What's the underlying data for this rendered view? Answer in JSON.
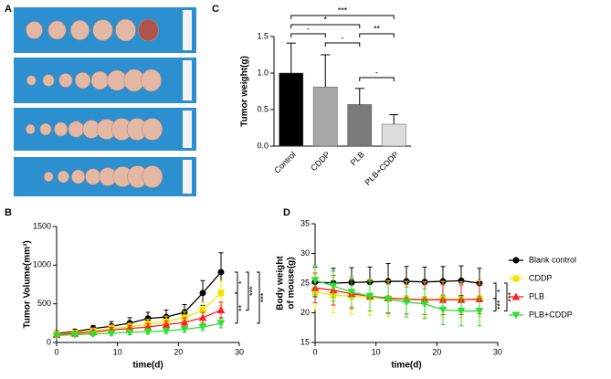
{
  "photo_panel": {
    "panel": "A"
  },
  "chart_data": [
    {
      "type": "bar",
      "panel": "C",
      "ylabel": "Tumor weight(g)",
      "categories": [
        "Control",
        "CDDP",
        "PLB",
        "PLB+CDDP"
      ],
      "values": [
        1.0,
        0.81,
        0.57,
        0.3
      ],
      "errors": [
        0.41,
        0.44,
        0.22,
        0.13
      ],
      "colors": [
        "#000000",
        "#a8a8a8",
        "#7a7a7a",
        "#dcdcdc"
      ],
      "ylim": [
        0,
        1.5
      ],
      "yticks": [
        {
          "value": 0,
          "label": "0.0"
        },
        {
          "value": 0.5,
          "label": "0.5"
        },
        {
          "value": 1,
          "label": "1.0"
        },
        {
          "value": 1.5,
          "label": "1.5"
        }
      ],
      "annotations": [
        "***",
        "*",
        "-",
        "**",
        "-",
        "-"
      ]
    },
    {
      "type": "line",
      "panel": "B",
      "xlabel": "time(d)",
      "ylabel": "Tumor Volume(mm³)",
      "x": [
        0,
        3,
        6,
        9,
        12,
        15,
        18,
        21,
        24,
        27
      ],
      "xlim": [
        0,
        30
      ],
      "xticks": [
        0,
        10,
        20,
        30
      ],
      "ylim": [
        0,
        1500
      ],
      "yticks": [
        0,
        500,
        1000,
        1500
      ],
      "series": [
        {
          "name": "Blank control",
          "color": "#000000",
          "marker": "circle",
          "values": [
            120,
            140,
            180,
            210,
            250,
            310,
            330,
            390,
            640,
            910
          ],
          "errors": [
            30,
            30,
            40,
            60,
            70,
            80,
            90,
            100,
            160,
            250
          ]
        },
        {
          "name": "CDDP",
          "color": "#f5e400",
          "marker": "square",
          "values": [
            110,
            125,
            150,
            180,
            200,
            240,
            270,
            320,
            420,
            640
          ],
          "errors": [
            25,
            30,
            35,
            45,
            50,
            60,
            70,
            80,
            100,
            160
          ]
        },
        {
          "name": "PLB",
          "color": "#ff2020",
          "marker": "triangle",
          "values": [
            100,
            115,
            135,
            160,
            180,
            200,
            230,
            260,
            320,
            420
          ],
          "errors": [
            20,
            25,
            30,
            35,
            40,
            45,
            50,
            60,
            70,
            100
          ]
        },
        {
          "name": "PLB+CDDP",
          "color": "#33dd33",
          "marker": "triangle-down",
          "values": [
            90,
            100,
            110,
            120,
            130,
            140,
            150,
            170,
            200,
            250
          ],
          "errors": [
            20,
            20,
            25,
            25,
            30,
            30,
            35,
            40,
            45,
            60
          ]
        }
      ],
      "annotations": [
        "*",
        "**",
        "***",
        "***"
      ]
    },
    {
      "type": "line",
      "panel": "D",
      "xlabel": "time(d)",
      "ylabel": [
        "Body weight",
        "of mouse(g)"
      ],
      "x": [
        0,
        3,
        6,
        9,
        12,
        15,
        18,
        21,
        24,
        27
      ],
      "xlim": [
        0,
        30
      ],
      "xticks": [
        0,
        10,
        20,
        30
      ],
      "ylim": [
        15,
        35
      ],
      "yticks": [
        15,
        20,
        25,
        30,
        35
      ],
      "legend": "right",
      "series": [
        {
          "name": "Blank control",
          "color": "#000000",
          "marker": "circle",
          "values": [
            25.2,
            25,
            25.1,
            25.2,
            25.3,
            25.3,
            25.2,
            25.3,
            25.4,
            25.0
          ],
          "errors": [
            2.5,
            2.5,
            2.5,
            2.5,
            3,
            2.5,
            2.5,
            2.5,
            2.5,
            2.5
          ]
        },
        {
          "name": "CDDP",
          "color": "#f5e400",
          "marker": "square",
          "values": [
            23.5,
            23,
            22.8,
            22.6,
            22.4,
            22.3,
            22.2,
            22.3,
            22.2,
            22.4
          ],
          "errors": [
            3,
            3,
            3,
            3,
            3,
            3,
            3,
            3,
            3,
            3
          ]
        },
        {
          "name": "PLB",
          "color": "#ff2020",
          "marker": "triangle",
          "values": [
            24.2,
            23.8,
            23.2,
            22.8,
            22.5,
            22.3,
            22.2,
            22.2,
            22.2,
            22.3
          ],
          "errors": [
            2.5,
            2.5,
            2.5,
            2.5,
            2.5,
            2.5,
            2.5,
            2.5,
            2.5,
            2.5
          ]
        },
        {
          "name": "PLB+CDDP",
          "color": "#33dd33",
          "marker": "triangle-down",
          "values": [
            25.5,
            24.5,
            23.5,
            22.8,
            22.3,
            21.8,
            21.5,
            20.5,
            20.3,
            20.3
          ],
          "errors": [
            2.5,
            2.5,
            2.5,
            2.5,
            2.5,
            2.5,
            2.5,
            2.5,
            2.5,
            2.5
          ]
        }
      ],
      "annotations": [
        "*",
        "***",
        "***"
      ]
    }
  ]
}
